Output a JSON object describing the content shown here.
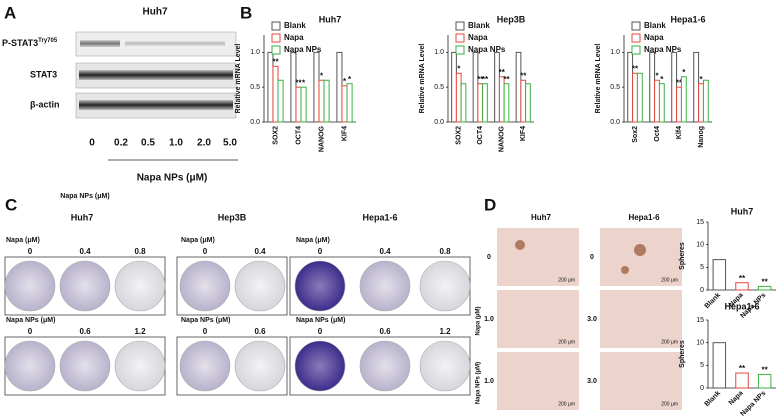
{
  "panel_a": {
    "letter": "A",
    "title": "Huh7",
    "blots": [
      {
        "label": "P-STAT3",
        "superscript": "Try705"
      },
      {
        "label": "STAT3"
      },
      {
        "label": "β-actin"
      }
    ],
    "doses": [
      "0",
      "0.2",
      "0.5",
      "1.0",
      "2.0",
      "5.0"
    ],
    "xlabel": "Napa NPs (μM)",
    "caption": "Napa NPs (μM)"
  },
  "panel_b": {
    "letter": "B"
  },
  "panel_c": {
    "letter": "C",
    "groups": [
      {
        "title": "Huh7",
        "rows": [
          {
            "label": "Napa (μM)",
            "doses": [
              "0",
              "0.4",
              "0.8"
            ]
          },
          {
            "label": "Napa NPs (μM)",
            "doses": [
              "0",
              "0.6",
              "1.2"
            ]
          }
        ]
      },
      {
        "title": "Hep3B",
        "rows": [
          {
            "label": "Napa (μM)",
            "doses": [
              "0",
              "0.4"
            ]
          },
          {
            "label": "Napa NPs (μM)",
            "doses": [
              "0",
              "0.6"
            ]
          }
        ]
      },
      {
        "title": "Hepa1-6",
        "rows": [
          {
            "label": "Napa (μM)",
            "doses": [
              "0",
              "0.4",
              "0.8"
            ]
          },
          {
            "label": "Napa NPs (μM)",
            "doses": [
              "0",
              "0.6",
              "1.2"
            ]
          }
        ]
      }
    ]
  },
  "panel_d": {
    "letter": "D",
    "columns": [
      "Huh7",
      "Hepa1-6"
    ],
    "row_labels": [
      "Napa (μM)",
      "Napa NPs (μM)"
    ],
    "doses": [
      [
        "0",
        "1.0",
        "1.0"
      ],
      [
        "0",
        "3.0",
        "3.0"
      ]
    ],
    "scale": "200 μm"
  },
  "chart_data": [
    {
      "type": "bar",
      "title": "Huh7",
      "ylabel": "Relative mRNA Level",
      "categories": [
        "SOX2",
        "OCT4",
        "NANOG",
        "KIF4"
      ],
      "series": [
        {
          "name": "Blank",
          "color": "#555555",
          "values": [
            1.0,
            1.0,
            1.0,
            1.0
          ],
          "significance": [
            null,
            null,
            null,
            null
          ]
        },
        {
          "name": "Napa",
          "color": "#e8463c",
          "values": [
            0.8,
            0.5,
            0.6,
            0.52
          ],
          "significance": [
            "**",
            "**",
            "*",
            "*"
          ]
        },
        {
          "name": "Napa NPs",
          "color": "#3cb043",
          "values": [
            0.6,
            0.5,
            0.6,
            0.55
          ],
          "significance": [
            null,
            "*",
            null,
            "*"
          ]
        }
      ],
      "ylim": [
        0,
        1.25
      ],
      "yticks": [
        {
          "value": 0,
          "label": "0.0"
        },
        {
          "value": 0.5,
          "label": "0.5"
        },
        {
          "value": 1,
          "label": "1.0"
        }
      ]
    },
    {
      "type": "bar",
      "title": "Hep3B",
      "ylabel": "Relative mRNA Level",
      "categories": [
        "SOX2",
        "OCT4",
        "NANOG",
        "KIF4"
      ],
      "series": [
        {
          "name": "Blank",
          "color": "#555555",
          "values": [
            1.0,
            1.0,
            1.0,
            1.0
          ],
          "significance": [
            null,
            null,
            null,
            null
          ]
        },
        {
          "name": "Napa",
          "color": "#e8463c",
          "values": [
            0.7,
            0.55,
            0.65,
            0.6
          ],
          "significance": [
            "*",
            "**",
            "**",
            "**"
          ]
        },
        {
          "name": "Napa NPs",
          "color": "#3cb043",
          "values": [
            0.55,
            0.55,
            0.55,
            0.55
          ],
          "significance": [
            null,
            "**",
            "**",
            null
          ]
        }
      ],
      "ylim": [
        0,
        1.25
      ],
      "yticks": [
        {
          "value": 0,
          "label": "0.0"
        },
        {
          "value": 0.5,
          "label": "0.5"
        },
        {
          "value": 1,
          "label": "1.0"
        }
      ]
    },
    {
      "type": "bar",
      "title": "Hepa1-6",
      "ylabel": "Relative mRNA Level",
      "categories": [
        "Sox2",
        "Oct4",
        "Klf4",
        "Nanog"
      ],
      "series": [
        {
          "name": "Blank",
          "color": "#555555",
          "values": [
            1.0,
            1.0,
            1.0,
            1.0
          ],
          "significance": [
            null,
            null,
            null,
            null
          ]
        },
        {
          "name": "Napa",
          "color": "#e8463c",
          "values": [
            0.7,
            0.6,
            0.5,
            0.55
          ],
          "significance": [
            "**",
            "*",
            "**",
            "*"
          ]
        },
        {
          "name": "Napa NPs",
          "color": "#3cb043",
          "values": [
            0.7,
            0.55,
            0.65,
            0.6
          ],
          "significance": [
            null,
            "*",
            "*",
            null
          ]
        }
      ],
      "ylim": [
        0,
        1.25
      ],
      "yticks": [
        {
          "value": 0,
          "label": "0.0"
        },
        {
          "value": 0.5,
          "label": "0.5"
        },
        {
          "value": 1,
          "label": "1.0"
        }
      ]
    },
    {
      "type": "bar",
      "title": "Huh7",
      "ylabel": "Spheres",
      "categories": [
        "Blank",
        "Napa",
        "Napa NPs"
      ],
      "values": [
        6.7,
        1.6,
        0.8
      ],
      "colors": [
        "#555555",
        "#e8463c",
        "#3cb043"
      ],
      "significance": [
        null,
        "**",
        "**"
      ],
      "ylim": [
        0,
        15
      ],
      "yticks": [
        0,
        5,
        10,
        15
      ]
    },
    {
      "type": "bar",
      "title": "Hepa1-6",
      "ylabel": "Spheres",
      "categories": [
        "Blank",
        "Napa",
        "Napa NPs"
      ],
      "values": [
        10,
        3.3,
        3.0
      ],
      "colors": [
        "#555555",
        "#e8463c",
        "#3cb043"
      ],
      "significance": [
        null,
        "**",
        "**"
      ],
      "ylim": [
        0,
        15
      ],
      "yticks": [
        0,
        5,
        10,
        15
      ]
    }
  ]
}
